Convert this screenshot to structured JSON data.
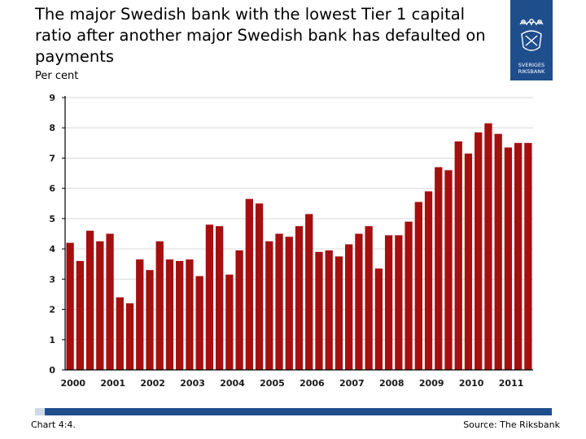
{
  "header": {
    "title": "The major Swedish bank with the lowest Tier 1 capital ratio after another major Swedish bank has defaulted on payments",
    "unit": "Per cent"
  },
  "logo": {
    "text_line1": "SVERIGES",
    "text_line2": "RIKSBANK",
    "color": "#1f4e8c"
  },
  "footer": {
    "chart_number": "Chart 4:4.",
    "source": "Source: The Riksbank",
    "bar_color": "#1f4e8c"
  },
  "chart_data": {
    "type": "bar",
    "title": "The major Swedish bank with the lowest Tier 1 capital ratio after another major Swedish bank has defaulted on payments",
    "ylabel": "Per cent",
    "ylim": [
      0,
      9
    ],
    "yticks": [
      0,
      1,
      2,
      3,
      4,
      5,
      6,
      7,
      8,
      9
    ],
    "grid": true,
    "bar_color": "#a50f0f",
    "x_tick_labels": [
      "2000",
      "2001",
      "2002",
      "2003",
      "2004",
      "2005",
      "2006",
      "2007",
      "2008",
      "2009",
      "2010",
      "2011"
    ],
    "bars_per_year": 4,
    "values": [
      4.2,
      3.6,
      4.6,
      4.25,
      4.5,
      2.4,
      2.2,
      3.65,
      3.3,
      4.25,
      3.65,
      3.6,
      3.65,
      3.1,
      4.8,
      4.75,
      3.15,
      3.95,
      5.65,
      5.5,
      4.25,
      4.5,
      4.4,
      4.75,
      5.15,
      3.9,
      3.95,
      3.75,
      4.15,
      4.5,
      4.75,
      3.35,
      4.45,
      4.45,
      4.9,
      5.55,
      5.9,
      6.7,
      6.6,
      7.55,
      7.15,
      7.85,
      8.15,
      7.8,
      7.35,
      7.5,
      7.5
    ]
  }
}
